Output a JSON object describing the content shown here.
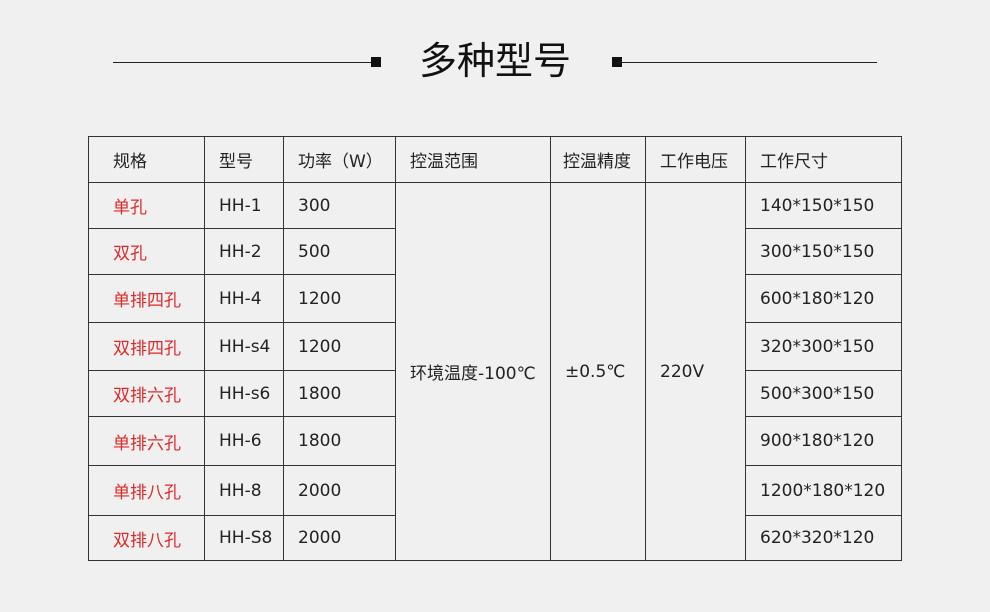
{
  "title": "多种型号",
  "table": {
    "headers": [
      "规格",
      "型号",
      "功率（W）",
      "控温范围",
      "控温精度",
      "工作电压",
      "工作尺寸"
    ],
    "shared": {
      "range": "环境温度-100℃",
      "precision": "±0.5℃",
      "voltage": "220V"
    },
    "rows": [
      {
        "spec": "单孔",
        "model": "HH-1",
        "power": "300",
        "size": "140*150*150"
      },
      {
        "spec": "双孔",
        "model": "HH-2",
        "power": "500",
        "size": "300*150*150"
      },
      {
        "spec": "单排四孔",
        "model": "HH-4",
        "power": "1200",
        "size": "600*180*120"
      },
      {
        "spec": "双排四孔",
        "model": "HH-s4",
        "power": "1200",
        "size": "320*300*150"
      },
      {
        "spec": "双排六孔",
        "model": "HH-s6",
        "power": "1800",
        "size": "500*300*150"
      },
      {
        "spec": "单排六孔",
        "model": "HH-6",
        "power": "1800",
        "size": "900*180*120"
      },
      {
        "spec": "单排八孔",
        "model": "HH-8",
        "power": "2000",
        "size": "1200*180*120"
      },
      {
        "spec": "双排八孔",
        "model": "HH-S8",
        "power": "2000",
        "size": "620*320*120"
      }
    ]
  },
  "colors": {
    "spec_text": "#e02a2a",
    "background": "#f0f0f0"
  }
}
